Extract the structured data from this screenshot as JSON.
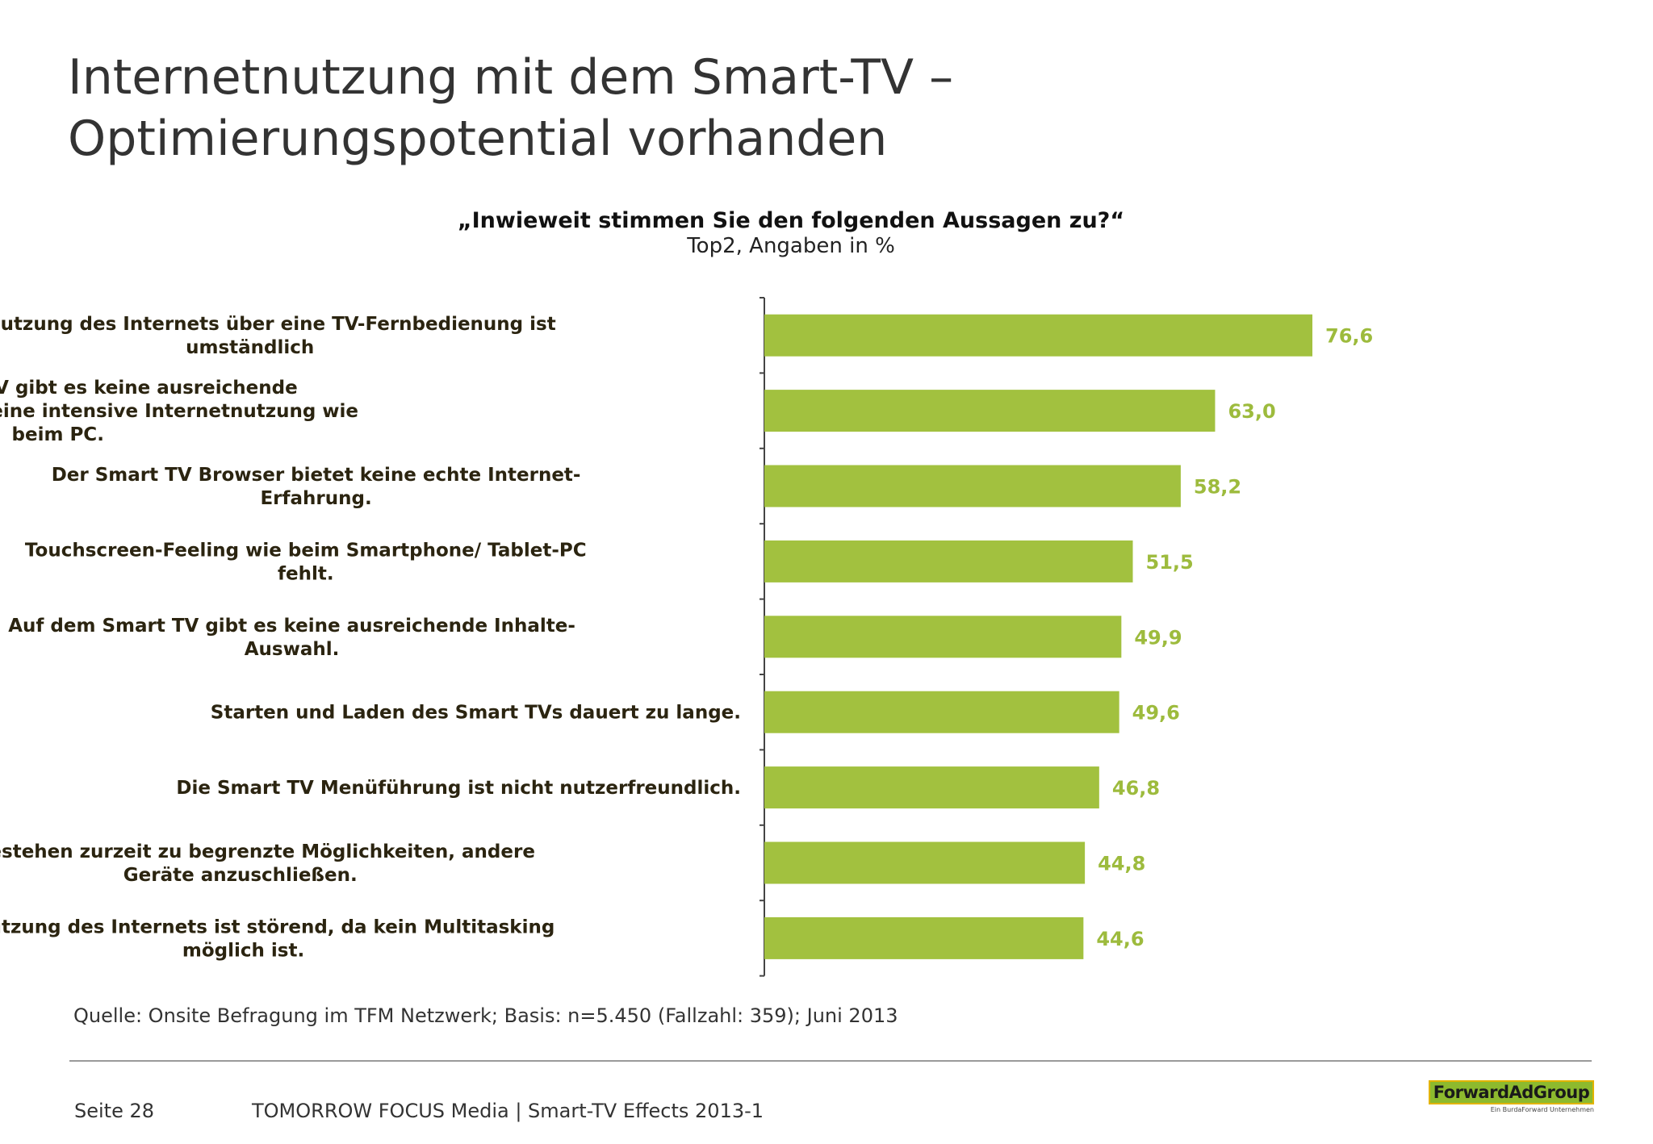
{
  "title": {
    "line1": "Internetnutzung mit dem Smart-TV –",
    "line2": "Optimierungspotential vorhanden"
  },
  "chart_data": {
    "type": "bar",
    "orientation": "horizontal",
    "title": "„Inwieweit stimmen Sie den folgenden Aussagen zu?“",
    "subtitle": "Top2, Angaben in %",
    "categories": [
      [
        "Die Nutzung des Internets über eine TV-Fernbedienung ist",
        "umständlich"
      ],
      [
        "Auf dem Smart TV gibt es keine ausreichende",
        "Speicherkapazität für eine intensive Internetnutzung wie",
        "beim PC."
      ],
      [
        "Der Smart TV Browser bietet keine echte Internet-",
        "Erfahrung."
      ],
      [
        "Touchscreen-Feeling wie beim Smartphone/ Tablet-PC",
        "fehlt."
      ],
      [
        "Auf dem Smart TV gibt es keine ausreichende Inhalte-",
        "Auswahl."
      ],
      [
        "Starten und Laden des Smart TVs dauert zu lange."
      ],
      [
        "Die Smart TV Menüführung ist nicht nutzerfreundlich."
      ],
      [
        "Es bestehen zurzeit zu begrenzte Möglichkeiten, andere",
        "Geräte anzuschließen."
      ],
      [
        "Die Nutzung des Internets ist störend, da kein Multitasking",
        "möglich ist."
      ]
    ],
    "values": [
      76.6,
      63.0,
      58.2,
      51.5,
      49.9,
      49.6,
      46.8,
      44.8,
      44.6
    ],
    "value_labels": [
      "76,6",
      "63,0",
      "58,2",
      "51,5",
      "49,9",
      "49,6",
      "46,8",
      "44,8",
      "44,6"
    ],
    "xlim": [
      0,
      100
    ],
    "grid": false,
    "bar_color": "#a2c13f",
    "label_color": "#9dbb3d"
  },
  "source": "Quelle: Onsite Befragung im TFM Netzwerk; Basis: n=5.450 (Fallzahl: 359); Juni 2013",
  "footer": {
    "page": "Seite 28",
    "text": "TOMORROW FOCUS Media  |  Smart-TV Effects 2013-1"
  },
  "logo": {
    "name": "ForwardAdGroup",
    "tagline": "Ein BurdaForward Unternehmen"
  }
}
